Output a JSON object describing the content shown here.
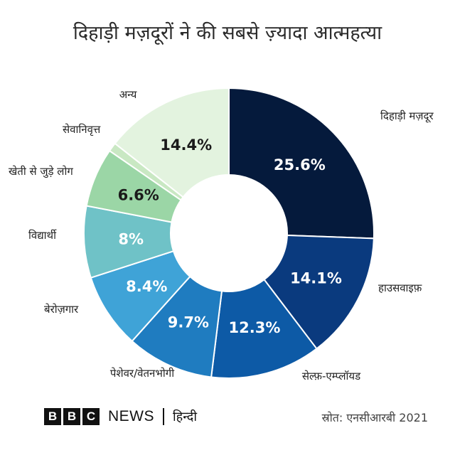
{
  "title": "दिहाड़ी मज़दूरों ने की सबसे ज़्यादा आत्महत्या",
  "chart_data": {
    "type": "pie",
    "subtype": "donut",
    "title": "दिहाड़ी मज़दूरों ने की सबसे ज़्यादा आत्महत्या",
    "categories": [
      "दिहाड़ी मज़दूर",
      "हाउसवाइफ़",
      "सेल्फ़-एम्प्लॉयड",
      "पेशेवर/वेतनभोगी",
      "बेरोज़गार",
      "विद्यार्थी",
      "खेती से जुड़े लोग",
      "सेवानिवृत्त",
      "अन्य"
    ],
    "values": [
      25.6,
      14.1,
      12.3,
      9.7,
      8.4,
      8,
      6.6,
      1,
      14.4
    ],
    "value_labels": [
      "25.6%",
      "14.1%",
      "12.3%",
      "9.7%",
      "8.4%",
      "8%",
      "6.6%",
      "",
      "14.4%"
    ],
    "colors": [
      "#051a3c",
      "#0a3a7e",
      "#0d5aa6",
      "#1f7cc0",
      "#3fa3d7",
      "#6fc2c7",
      "#9bd6a6",
      "#c9e8c3",
      "#e3f3df"
    ],
    "label_text_colors": [
      "#ffffff",
      "#ffffff",
      "#ffffff",
      "#ffffff",
      "#ffffff",
      "#ffffff",
      "#1a1a1a",
      "#1a1a1a",
      "#1a1a1a"
    ]
  },
  "footer": {
    "bbc_letters": [
      "B",
      "B",
      "C"
    ],
    "news": "NEWS",
    "language": "हिन्दी",
    "source": "स्रोत: एनसीआरबी 2021"
  }
}
